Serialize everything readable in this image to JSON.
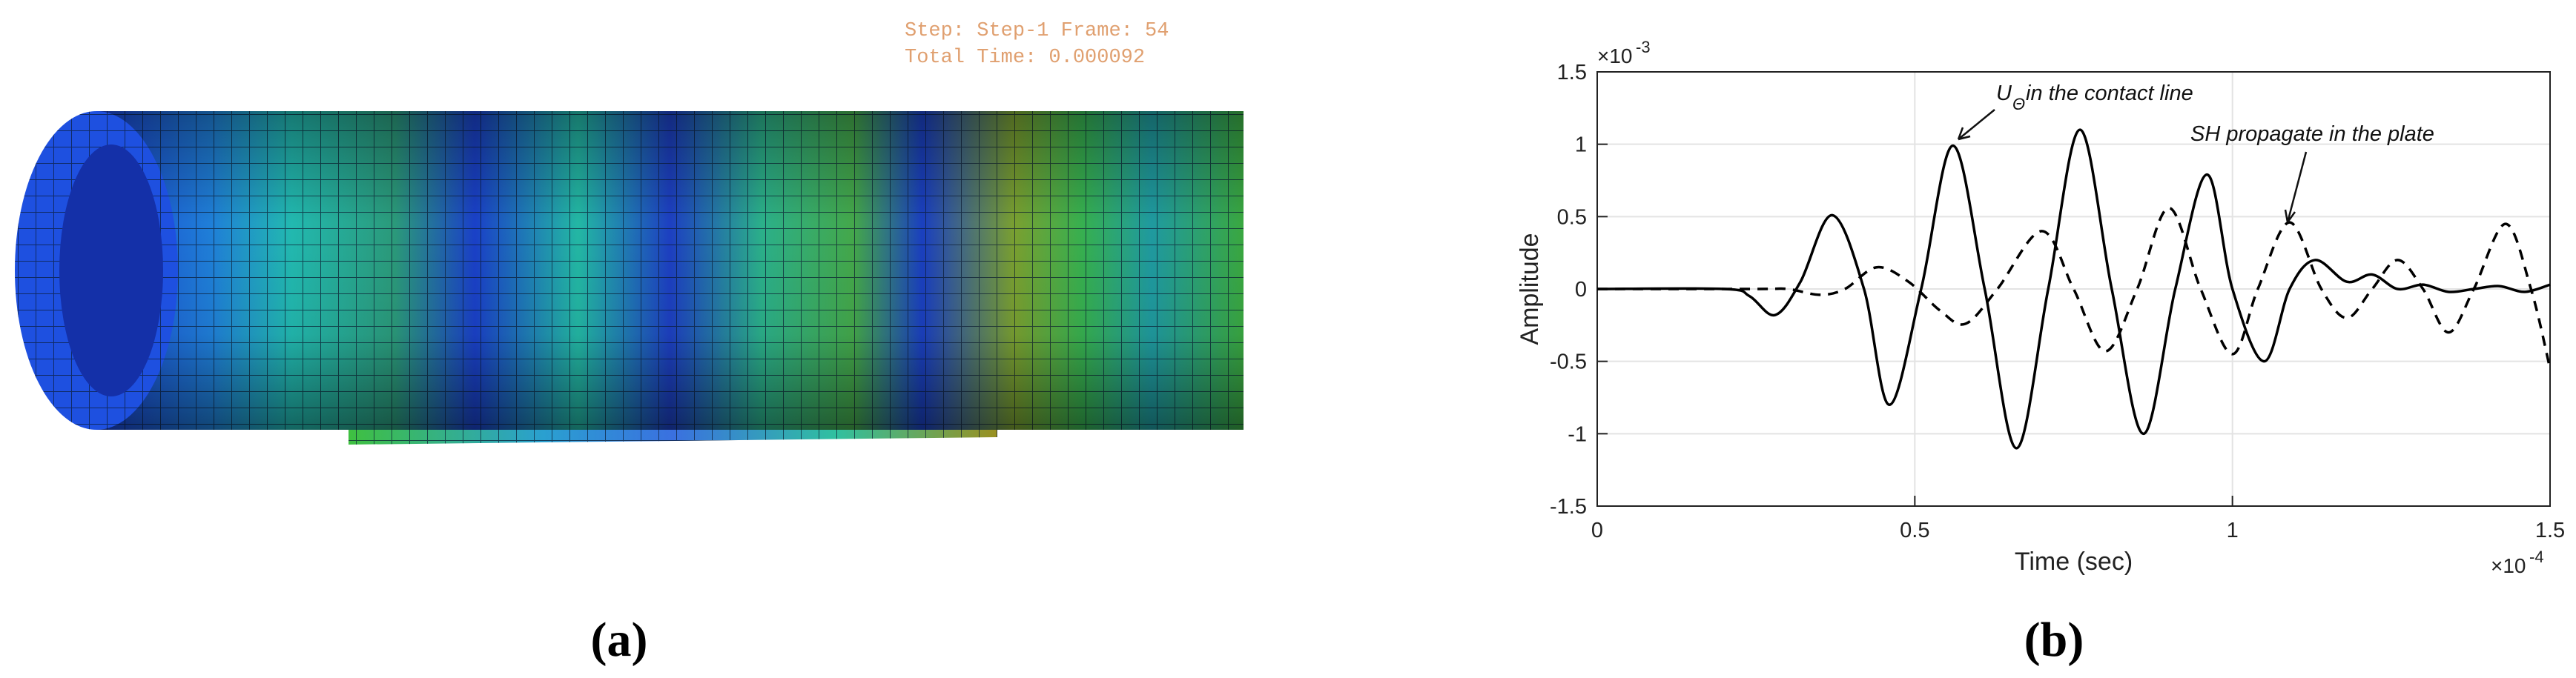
{
  "panel_a": {
    "step_text": "Step: Step-1   Frame: 54",
    "time_text": "Total Time: 0.000092",
    "caption": "(a)"
  },
  "chart_data": {
    "type": "line",
    "caption": "(b)",
    "xlabel": "Time (sec)",
    "ylabel": "Amplitude",
    "x_multiplier": {
      "base": "×10",
      "power": "-4"
    },
    "y_multiplier": {
      "base": "×10",
      "power": "-3"
    },
    "xlim": [
      0,
      1.5
    ],
    "xticks": [
      0,
      0.5,
      1,
      1.5
    ],
    "ylim": [
      -1.5,
      1.5
    ],
    "yticks": [
      -1.5,
      -1,
      -0.5,
      0,
      0.5,
      1,
      1.5
    ],
    "grid": true,
    "series": [
      {
        "color": "#000000",
        "dash": "solid",
        "x": [
          0,
          0.2,
          0.24,
          0.28,
          0.32,
          0.37,
          0.42,
          0.46,
          0.51,
          0.56,
          0.61,
          0.66,
          0.71,
          0.76,
          0.81,
          0.86,
          0.91,
          0.96,
          1.0,
          1.05,
          1.09,
          1.13,
          1.18,
          1.22,
          1.26,
          1.3,
          1.34,
          1.38,
          1.42,
          1.46,
          1.5
        ],
        "values": [
          0,
          0,
          -0.05,
          -0.18,
          0.05,
          0.51,
          0,
          -0.8,
          0,
          0.99,
          0,
          -1.1,
          0,
          1.1,
          0,
          -1.0,
          0,
          0.79,
          0,
          -0.5,
          0,
          0.2,
          0.05,
          0.1,
          0,
          0.03,
          -0.02,
          0,
          0.02,
          -0.02,
          0.03
        ]
      },
      {
        "color": "#000000",
        "dash": "dashed",
        "x": [
          0,
          0.25,
          0.3,
          0.35,
          0.39,
          0.44,
          0.49,
          0.54,
          0.58,
          0.63,
          0.7,
          0.75,
          0.8,
          0.85,
          0.9,
          0.95,
          1.0,
          1.04,
          1.09,
          1.14,
          1.18,
          1.22,
          1.26,
          1.3,
          1.34,
          1.38,
          1.43,
          1.47,
          1.5
        ],
        "values": [
          0,
          0,
          0,
          -0.04,
          0,
          0.15,
          0.05,
          -0.15,
          -0.24,
          0,
          0.4,
          0,
          -0.43,
          0,
          0.56,
          0,
          -0.45,
          0,
          0.46,
          0,
          -0.2,
          0,
          0.2,
          0,
          -0.3,
          0,
          0.45,
          0,
          -0.55
        ]
      }
    ],
    "annotations": [
      {
        "text": "U",
        "subscript": "Θ",
        "rest": " in the contact line"
      },
      {
        "text": "SH propagate in the plate"
      }
    ]
  }
}
